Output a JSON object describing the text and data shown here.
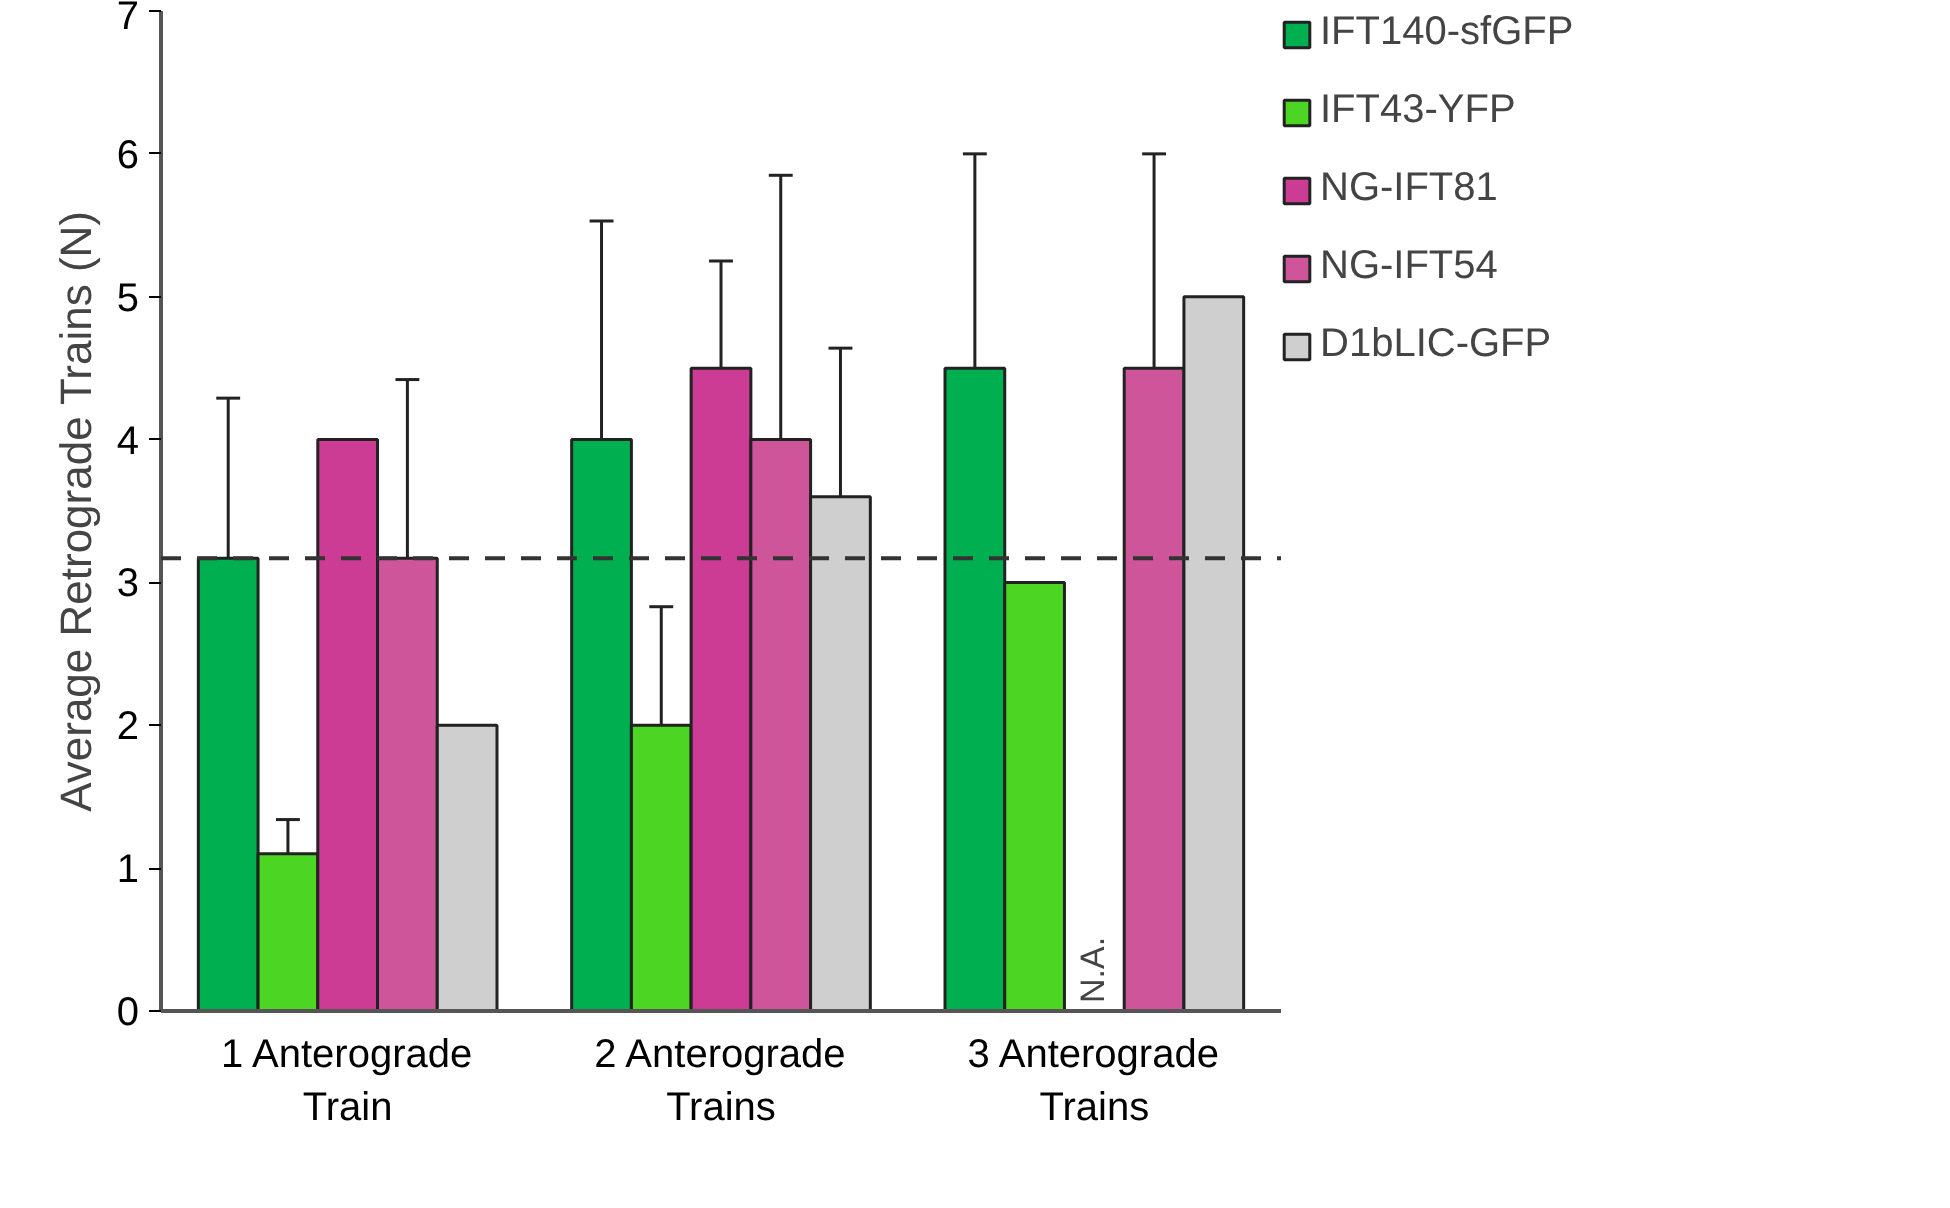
{
  "chart_data": {
    "type": "bar",
    "ylabel": "Average Retrograde Trains (N)",
    "categories": [
      "1 Anterograde\nTrain",
      "2 Anterograde\nTrains",
      "3 Anterograde\nTrains"
    ],
    "series": [
      {
        "name": "IFT140-sfGFP",
        "color": "#00b050",
        "values": [
          3.17,
          4.0,
          4.5
        ],
        "errors": [
          [
            3.17,
            4.29
          ],
          [
            4.0,
            5.53
          ],
          [
            4.5,
            6.0
          ]
        ]
      },
      {
        "name": "IFT43-YFP",
        "color": "#4cd623",
        "values": [
          1.1,
          2.0,
          3.0
        ],
        "errors": [
          [
            1.1,
            1.34
          ],
          [
            2.0,
            2.83
          ],
          null
        ]
      },
      {
        "name": "NG-IFT81",
        "color": "#cc3c94",
        "values": [
          4.0,
          4.5,
          null
        ],
        "errors": [
          null,
          [
            4.5,
            5.25
          ],
          null
        ]
      },
      {
        "name": "NG-IFT54",
        "color": "#cf559b",
        "values": [
          3.17,
          4.0,
          4.5
        ],
        "errors": [
          [
            3.17,
            4.42
          ],
          [
            4.0,
            5.85
          ],
          [
            4.5,
            6.0
          ]
        ]
      },
      {
        "name": "D1bLIC-GFP",
        "color": "#d0cfd0",
        "values": [
          2.0,
          3.6,
          5.0
        ],
        "errors": [
          null,
          [
            3.6,
            4.64
          ],
          null
        ]
      }
    ],
    "ylim": [
      0,
      7
    ],
    "yticks": [
      0,
      1,
      2,
      3,
      4,
      5,
      6,
      7
    ],
    "ref_lines": [
      {
        "axis": "y",
        "value": 3.17,
        "line_style": "dashed",
        "color": "#333333"
      }
    ],
    "annotations": [
      "N.A."
    ],
    "legend": "right",
    "grid": false
  }
}
